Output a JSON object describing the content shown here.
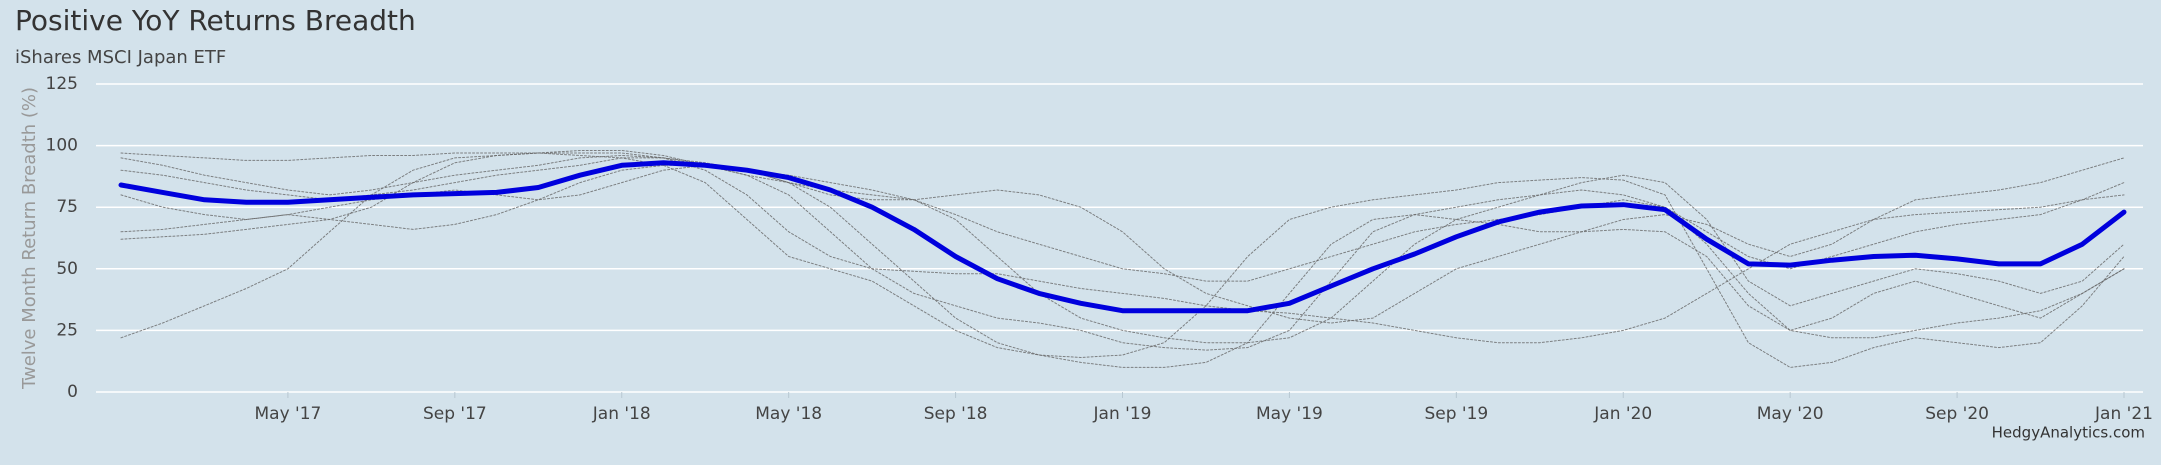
{
  "chart_data": {
    "type": "line",
    "title": "Positive YoY Returns Breadth",
    "subtitle": "iShares MSCI Japan ETF",
    "y_label": "Twelve Month Return Breadth (%)",
    "credit": "HedgyAnalytics.com",
    "grid": true,
    "x": [
      "2017-01",
      "2017-02",
      "2017-03",
      "2017-04",
      "2017-05",
      "2017-06",
      "2017-07",
      "2017-08",
      "2017-09",
      "2017-10",
      "2017-11",
      "2017-12",
      "2018-01",
      "2018-02",
      "2018-03",
      "2018-04",
      "2018-05",
      "2018-06",
      "2018-07",
      "2018-08",
      "2018-09",
      "2018-10",
      "2018-11",
      "2018-12",
      "2019-01",
      "2019-02",
      "2019-03",
      "2019-04",
      "2019-05",
      "2019-06",
      "2019-07",
      "2019-08",
      "2019-09",
      "2019-10",
      "2019-11",
      "2019-12",
      "2020-01",
      "2020-02",
      "2020-03",
      "2020-04",
      "2020-05",
      "2020-06",
      "2020-07",
      "2020-08",
      "2020-09",
      "2020-10",
      "2020-11",
      "2020-12",
      "2021-01"
    ],
    "xlim": [
      "2017-01",
      "2021-01"
    ],
    "xticks": [
      {
        "value": "2017-05",
        "label": "May '17"
      },
      {
        "value": "2017-09",
        "label": "Sep '17"
      },
      {
        "value": "2018-01",
        "label": "Jan '18"
      },
      {
        "value": "2018-05",
        "label": "May '18"
      },
      {
        "value": "2018-09",
        "label": "Sep '18"
      },
      {
        "value": "2019-01",
        "label": "Jan '19"
      },
      {
        "value": "2019-05",
        "label": "May '19"
      },
      {
        "value": "2019-09",
        "label": "Sep '19"
      },
      {
        "value": "2020-01",
        "label": "Jan '20"
      },
      {
        "value": "2020-05",
        "label": "May '20"
      },
      {
        "value": "2020-09",
        "label": "Sep '20"
      },
      {
        "value": "2021-01",
        "label": "Jan '21"
      }
    ],
    "ylim": [
      0,
      125
    ],
    "yticks": [
      0,
      25,
      50,
      75,
      100,
      125
    ],
    "series": [
      {
        "color": "#666666",
        "values": [
          97,
          96,
          95,
          94,
          94,
          95,
          96,
          96,
          97,
          97,
          97,
          96,
          95,
          92,
          85,
          70,
          55,
          50,
          45,
          35,
          25,
          18,
          15,
          14,
          15,
          20,
          35,
          55,
          70,
          75,
          78,
          80,
          82,
          85,
          86,
          87,
          86,
          80,
          50,
          20,
          10,
          12,
          18,
          22,
          20,
          18,
          20,
          35,
          55
        ]
      },
      {
        "color": "#666666",
        "values": [
          62,
          63,
          64,
          66,
          68,
          70,
          75,
          85,
          93,
          96,
          97,
          98,
          98,
          96,
          92,
          88,
          85,
          82,
          80,
          78,
          70,
          55,
          40,
          30,
          25,
          22,
          20,
          20,
          22,
          30,
          45,
          60,
          70,
          75,
          80,
          85,
          88,
          85,
          70,
          45,
          35,
          40,
          45,
          50,
          48,
          45,
          40,
          45,
          60
        ]
      },
      {
        "color": "#666666",
        "values": [
          22,
          28,
          35,
          42,
          50,
          65,
          80,
          90,
          95,
          96,
          97,
          97,
          97,
          95,
          92,
          88,
          80,
          65,
          50,
          40,
          35,
          30,
          28,
          25,
          20,
          18,
          17,
          18,
          25,
          45,
          65,
          72,
          75,
          78,
          80,
          82,
          80,
          75,
          60,
          40,
          25,
          30,
          40,
          45,
          40,
          35,
          30,
          40,
          50
        ]
      },
      {
        "color": "#666666",
        "values": [
          90,
          88,
          85,
          82,
          80,
          78,
          80,
          82,
          85,
          88,
          90,
          92,
          95,
          95,
          93,
          90,
          88,
          85,
          82,
          78,
          72,
          65,
          60,
          55,
          50,
          48,
          45,
          45,
          50,
          55,
          60,
          65,
          68,
          70,
          72,
          75,
          78,
          75,
          65,
          55,
          50,
          55,
          60,
          65,
          68,
          70,
          72,
          78,
          85
        ]
      },
      {
        "color": "#666666",
        "values": [
          80,
          75,
          72,
          70,
          72,
          75,
          78,
          80,
          82,
          80,
          78,
          80,
          85,
          90,
          92,
          90,
          85,
          75,
          60,
          45,
          30,
          20,
          15,
          12,
          10,
          10,
          12,
          20,
          40,
          60,
          70,
          72,
          70,
          68,
          65,
          65,
          66,
          65,
          55,
          35,
          25,
          22,
          22,
          25,
          28,
          30,
          33,
          40,
          50
        ]
      },
      {
        "color": "#666666",
        "values": [
          65,
          66,
          68,
          70,
          72,
          70,
          68,
          66,
          68,
          72,
          78,
          85,
          90,
          92,
          92,
          90,
          85,
          80,
          78,
          78,
          80,
          82,
          80,
          75,
          65,
          50,
          40,
          35,
          30,
          28,
          30,
          40,
          50,
          55,
          60,
          65,
          70,
          72,
          68,
          60,
          55,
          60,
          70,
          78,
          80,
          82,
          85,
          90,
          95
        ]
      },
      {
        "color": "#666666",
        "values": [
          95,
          92,
          88,
          85,
          82,
          80,
          82,
          85,
          88,
          90,
          92,
          95,
          96,
          95,
          90,
          80,
          65,
          55,
          50,
          49,
          48,
          48,
          45,
          42,
          40,
          38,
          35,
          33,
          32,
          30,
          28,
          25,
          22,
          20,
          20,
          22,
          25,
          30,
          40,
          50,
          60,
          65,
          70,
          72,
          73,
          74,
          75,
          78,
          80
        ]
      },
      {
        "color": "#0000dd",
        "values": [
          84,
          81,
          78,
          77,
          77,
          78,
          79,
          80,
          80.5,
          81,
          83,
          88,
          92,
          93,
          92,
          90,
          87,
          82,
          75,
          66,
          55,
          46,
          40,
          36,
          33,
          33,
          33,
          33,
          36,
          43,
          50,
          56,
          63,
          69,
          73,
          75.5,
          76,
          74,
          62,
          52,
          51.5,
          53.5,
          55,
          55.5,
          54,
          52,
          52,
          60,
          73
        ]
      }
    ]
  }
}
